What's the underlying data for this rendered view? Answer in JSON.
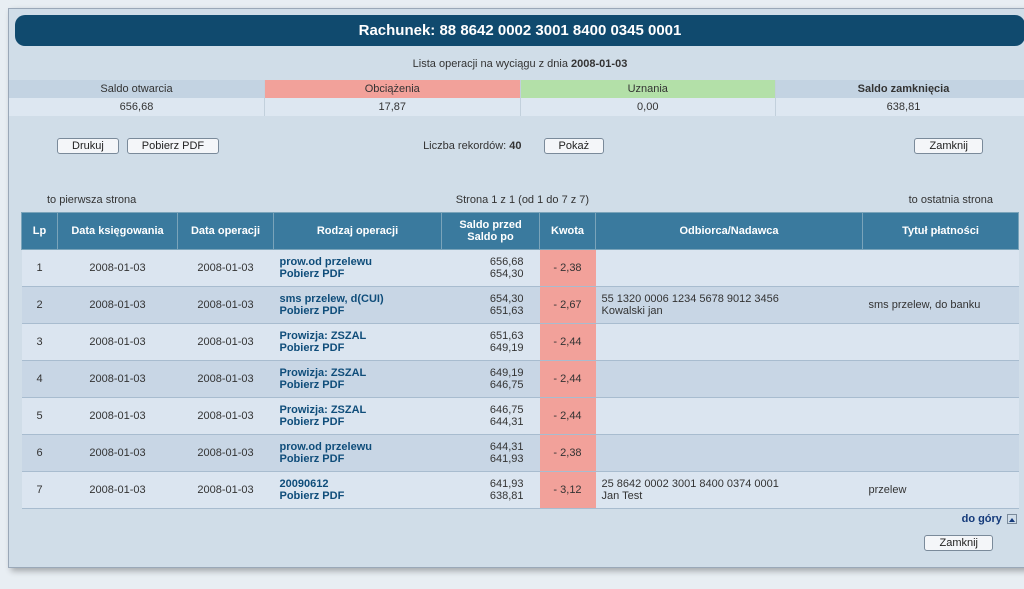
{
  "title": "Rachunek: 88 8642 0002 3001 8400 0345 0001",
  "subhead_prefix": "Lista operacji na wyciągu z dnia ",
  "subhead_date": "2008-01-03",
  "summary": {
    "headers": {
      "open": "Saldo otwarcia",
      "debit": "Obciążenia",
      "credit": "Uznania",
      "close": "Saldo zamknięcia"
    },
    "values": {
      "open": "656,68",
      "debit": "17,87",
      "credit": "0,00",
      "close": "638,81"
    },
    "colors": {
      "open_bg": "#c3d3e2",
      "debit_bg": "#f2a19a",
      "credit_bg": "#b3e0a8",
      "close_bg": "#c3d3e2",
      "value_bg": "#dde7f1"
    }
  },
  "controls": {
    "print": "Drukuj",
    "pdf": "Pobierz PDF",
    "records_label": "Liczba rekordów:  ",
    "records_value": "40",
    "show": "Pokaż",
    "close": "Zamknij"
  },
  "pagenav": {
    "first": "to pierwsza strona",
    "mid": "Strona 1 z 1 (od 1 do 7 z 7)",
    "last": "to ostatnia strona"
  },
  "grid": {
    "columns": [
      "Lp",
      "Data księgowania",
      "Data operacji",
      "Rodzaj operacji",
      "Saldo przed\nSaldo po",
      "Kwota",
      "Odbiorca/Nadawca",
      "Tytuł płatności"
    ],
    "col_widths": [
      "36px",
      "120px",
      "96px",
      "168px",
      "98px",
      "56px",
      "auto",
      "156px"
    ],
    "pdf_label": "Pobierz PDF",
    "neg_bg": "#f2a19a",
    "rows": [
      {
        "lp": "1",
        "date_book": "2008-01-03",
        "date_op": "2008-01-03",
        "op": "prow.od przelewu",
        "before": "656,68",
        "after": "654,30",
        "amount": "- 2,38",
        "party": "",
        "title": ""
      },
      {
        "lp": "2",
        "date_book": "2008-01-03",
        "date_op": "2008-01-03",
        "op": "sms przelew, d(CUI)",
        "before": "654,30",
        "after": "651,63",
        "amount": "- 2,67",
        "party": "55 1320 0006 1234 5678 9012 3456\nKowalski jan",
        "title": "sms przelew, do banku"
      },
      {
        "lp": "3",
        "date_book": "2008-01-03",
        "date_op": "2008-01-03",
        "op": "Prowizja: ZSZAL",
        "before": "651,63",
        "after": "649,19",
        "amount": "- 2,44",
        "party": "",
        "title": ""
      },
      {
        "lp": "4",
        "date_book": "2008-01-03",
        "date_op": "2008-01-03",
        "op": "Prowizja: ZSZAL",
        "before": "649,19",
        "after": "646,75",
        "amount": "- 2,44",
        "party": "",
        "title": ""
      },
      {
        "lp": "5",
        "date_book": "2008-01-03",
        "date_op": "2008-01-03",
        "op": "Prowizja: ZSZAL",
        "before": "646,75",
        "after": "644,31",
        "amount": "- 2,44",
        "party": "",
        "title": ""
      },
      {
        "lp": "6",
        "date_book": "2008-01-03",
        "date_op": "2008-01-03",
        "op": "prow.od przelewu",
        "before": "644,31",
        "after": "641,93",
        "amount": "- 2,38",
        "party": "",
        "title": ""
      },
      {
        "lp": "7",
        "date_book": "2008-01-03",
        "date_op": "2008-01-03",
        "op": "20090612",
        "before": "641,93",
        "after": "638,81",
        "amount": "- 3,12",
        "party": "25 8642 0002 3001 8400 0374 0001\nJan Test",
        "title": "przelew"
      }
    ]
  },
  "do_gory": "do góry",
  "style": {
    "title_bg": "#104a6e",
    "page_bg": "#d0dde8",
    "header_bg": "#3a7a9e",
    "row_odd": "#dbe5f0",
    "row_even": "#c8d6e5"
  }
}
